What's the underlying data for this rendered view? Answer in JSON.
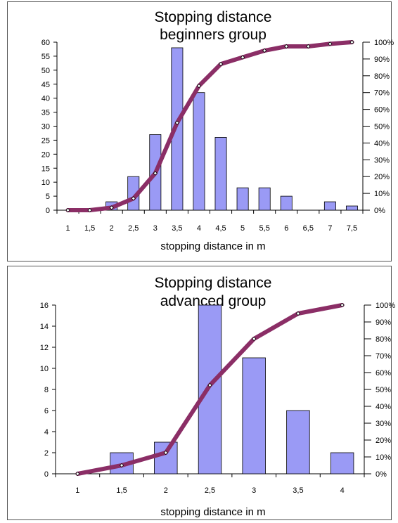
{
  "chart_data": [
    {
      "type": "bar",
      "title_lines": [
        "Stopping distance",
        "beginners group"
      ],
      "xlabel": "stopping distance in m",
      "categories": [
        "1",
        "1,5",
        "2",
        "2,5",
        "3",
        "3,5",
        "4",
        "4,5",
        "5",
        "5,5",
        "6",
        "6,5",
        "7",
        "7,5"
      ],
      "ylim": [
        0,
        60
      ],
      "y_ticks": [
        "0",
        "5",
        "10",
        "15",
        "20",
        "25",
        "30",
        "35",
        "40",
        "45",
        "50",
        "55",
        "60"
      ],
      "y2lim": [
        0,
        100
      ],
      "y2_ticks": [
        "0%",
        "10%",
        "20%",
        "30%",
        "40%",
        "50%",
        "60%",
        "70%",
        "80%",
        "90%",
        "100%"
      ],
      "series": [
        {
          "type": "bar",
          "values": [
            0,
            0,
            3,
            12,
            27,
            58,
            42,
            26,
            8,
            8,
            5,
            0,
            3,
            1.5
          ],
          "color": "#9a9af5"
        },
        {
          "type": "line",
          "axis": "right",
          "values": [
            0,
            0,
            1.5,
            7,
            22,
            52,
            74,
            87,
            91,
            95,
            97.5,
            97.5,
            99,
            100
          ],
          "color": "#8b2e66"
        }
      ]
    },
    {
      "type": "bar",
      "title_lines": [
        "Stopping distance",
        "advanced group"
      ],
      "xlabel": "stopping distance in m",
      "categories": [
        "1",
        "1,5",
        "2",
        "2,5",
        "3",
        "3,5",
        "4"
      ],
      "ylim": [
        0,
        16
      ],
      "y_ticks": [
        "0",
        "2",
        "4",
        "6",
        "8",
        "10",
        "12",
        "14",
        "16"
      ],
      "y2lim": [
        0,
        100
      ],
      "y2_ticks": [
        "0%",
        "10%",
        "20%",
        "30%",
        "40%",
        "50%",
        "60%",
        "70%",
        "80%",
        "90%",
        "100%"
      ],
      "series": [
        {
          "type": "bar",
          "values": [
            0,
            2,
            3,
            16,
            11,
            6,
            2
          ],
          "color": "#9a9af5"
        },
        {
          "type": "line",
          "axis": "right",
          "values": [
            0,
            5,
            12.5,
            52.5,
            80,
            95,
            100
          ],
          "color": "#8b2e66"
        }
      ]
    }
  ]
}
